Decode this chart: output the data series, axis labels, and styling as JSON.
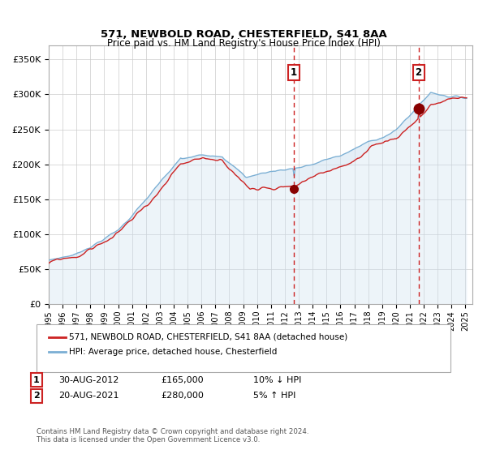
{
  "title": "571, NEWBOLD ROAD, CHESTERFIELD, S41 8AA",
  "subtitle": "Price paid vs. HM Land Registry's House Price Index (HPI)",
  "legend_property": "571, NEWBOLD ROAD, CHESTERFIELD, S41 8AA (detached house)",
  "legend_hpi": "HPI: Average price, detached house, Chesterfield",
  "annotation1_date": "30-AUG-2012",
  "annotation1_price": "£165,000",
  "annotation1_change": "10% ↓ HPI",
  "annotation2_date": "20-AUG-2021",
  "annotation2_price": "£280,000",
  "annotation2_change": "5% ↑ HPI",
  "copyright": "Contains HM Land Registry data © Crown copyright and database right 2024.\nThis data is licensed under the Open Government Licence v3.0.",
  "hpi_color": "#7bafd4",
  "property_color": "#cc2222",
  "dot_color": "#880000",
  "vline_color": "#cc2222",
  "bg_fill_color": "#cce0f0",
  "annotation_box_color": "#cc2222",
  "grid_color": "#cccccc",
  "ymin": 0,
  "ymax": 370000,
  "xmin": 1995.0,
  "xmax": 2025.5,
  "t1": 2012.625,
  "t2": 2021.625,
  "p1": 165000,
  "p2": 280000
}
